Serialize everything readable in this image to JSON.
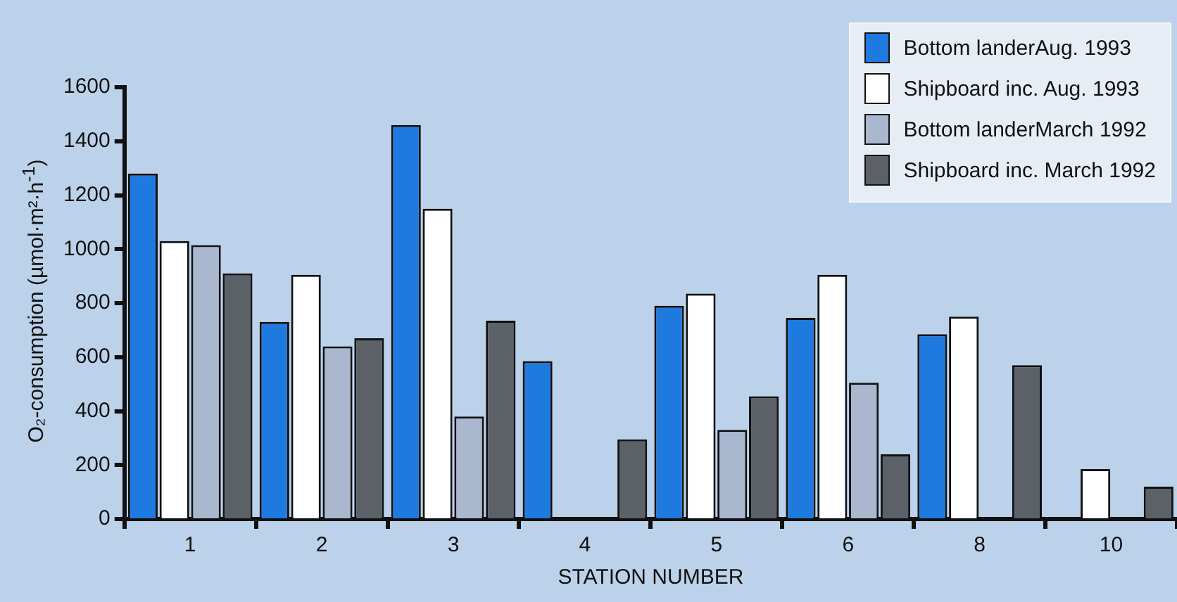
{
  "chart_data": {
    "type": "bar",
    "xlabel": "STATION NUMBER",
    "ylabel": "O₂-consumption (µmol·m²·h$^{-1}$)",
    "categories": [
      "1",
      "2",
      "3",
      "4",
      "5",
      "6",
      "8",
      "10"
    ],
    "series": [
      {
        "name": "Bottom landerAug. 1993",
        "color": "#1f7ae0",
        "values": [
          1280,
          730,
          1460,
          585,
          790,
          745,
          685,
          null
        ]
      },
      {
        "name": "Shipboard inc. Aug. 1993",
        "color": "#ffffff",
        "values": [
          1030,
          905,
          1150,
          null,
          835,
          905,
          750,
          185
        ]
      },
      {
        "name": "Bottom landerMarch 1992",
        "color": "#aab8cf",
        "values": [
          1015,
          640,
          380,
          null,
          330,
          505,
          null,
          null
        ]
      },
      {
        "name": "Shipboard inc. March 1992",
        "color": "#5c6168",
        "values": [
          910,
          670,
          735,
          295,
          455,
          240,
          570,
          120
        ]
      }
    ],
    "ylim": [
      0,
      1600
    ],
    "yticks": [
      0,
      200,
      400,
      600,
      800,
      1000,
      1200,
      1400,
      1600
    ],
    "grid": false,
    "legend": "top right"
  }
}
